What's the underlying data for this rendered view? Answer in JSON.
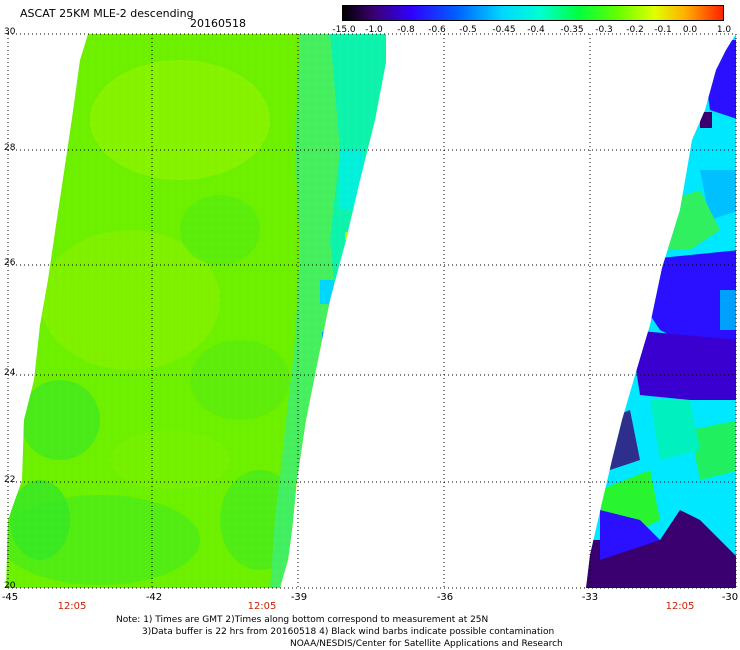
{
  "header": {
    "title": "ASCAT 25KM MLE-2 descending",
    "date": "20160518"
  },
  "colorbar": {
    "ticks": [
      "-15.0",
      "-1.0",
      "-0.8",
      "-0.6",
      "-0.5",
      "-0.45",
      "-0.4",
      "-0.35",
      "-0.3",
      "-0.2",
      "-0.1",
      "0.0",
      "1.0"
    ],
    "colors": [
      "#2a0033",
      "#5b008c",
      "#2400ff",
      "#0050ff",
      "#00a8ff",
      "#00e8ff",
      "#00ffd0",
      "#00ff70",
      "#30ff00",
      "#a8ff00",
      "#ffe800",
      "#ff8000",
      "#ff2000"
    ]
  },
  "map": {
    "lat_labels": [
      "30",
      "28",
      "26",
      "24",
      "22",
      "20"
    ],
    "lon_labels": [
      "-45",
      "-42",
      "-39",
      "-36",
      "-33",
      "-30"
    ],
    "time_labels": [
      "12:05",
      "12:05",
      "12:05"
    ],
    "swath_colors": {
      "west_main": "#7af300",
      "west_yellow": "#9cf800",
      "west_green": "#52ee10",
      "west_edge_cyan": "#00f7d8",
      "east_blue": "#2a10ff",
      "east_cyan": "#00f0ff",
      "east_dark": "#3a0070",
      "east_green": "#28f430"
    }
  },
  "notes": {
    "line1": "Note: 1) Times are GMT 2)Times along bottom correspond to measurement at 25N",
    "line2": "3)Data buffer is 22 hrs from 20160518 4) Black wind barbs indicate possible contamination",
    "line3": "NOAA/NESDIS/Center for Satellite Applications and Research"
  }
}
